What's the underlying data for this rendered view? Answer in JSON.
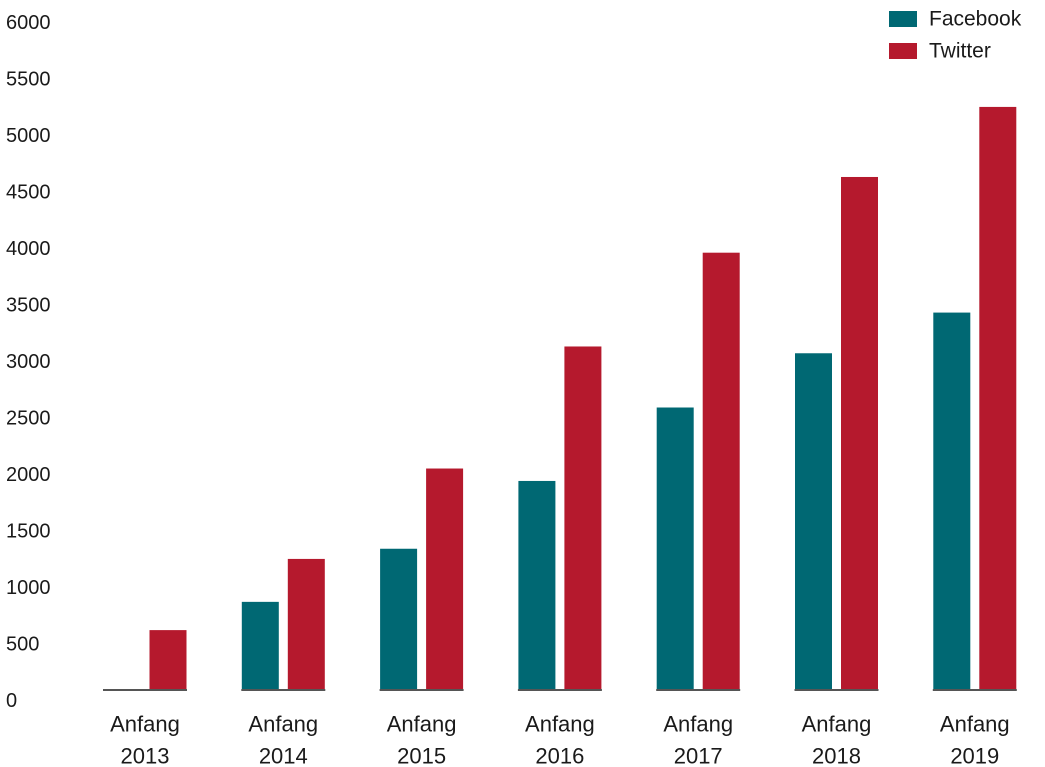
{
  "chart_data": {
    "type": "bar",
    "categories": [
      "Anfang 2013",
      "Anfang 2014",
      "Anfang 2015",
      "Anfang 2016",
      "Anfang 2017",
      "Anfang 2018",
      "Anfang 2019"
    ],
    "category_lines": [
      [
        "Anfang",
        "2013"
      ],
      [
        "Anfang",
        "2014"
      ],
      [
        "Anfang",
        "2015"
      ],
      [
        "Anfang",
        "2016"
      ],
      [
        "Anfang",
        "2017"
      ],
      [
        "Anfang",
        "2018"
      ],
      [
        "Anfang",
        "2019"
      ]
    ],
    "series": [
      {
        "name": "Facebook",
        "color": "#006873",
        "values": [
          0,
          780,
          1250,
          1850,
          2500,
          2980,
          3340
        ]
      },
      {
        "name": "Twitter",
        "color": "#B5192D",
        "values": [
          530,
          1160,
          1960,
          3040,
          3870,
          4540,
          5160
        ]
      }
    ],
    "ylim": [
      0,
      6000
    ],
    "y_ticks": [
      "0",
      "500",
      "1000",
      "1500",
      "2000",
      "2500",
      "3000",
      "3500",
      "4000",
      "4500",
      "5000",
      "5500",
      "6000"
    ],
    "title": "",
    "xlabel": "",
    "ylabel": "",
    "grid": false,
    "legend_position": "top-right",
    "axis_color": "#555555",
    "text_color": "#1a1a1a"
  }
}
